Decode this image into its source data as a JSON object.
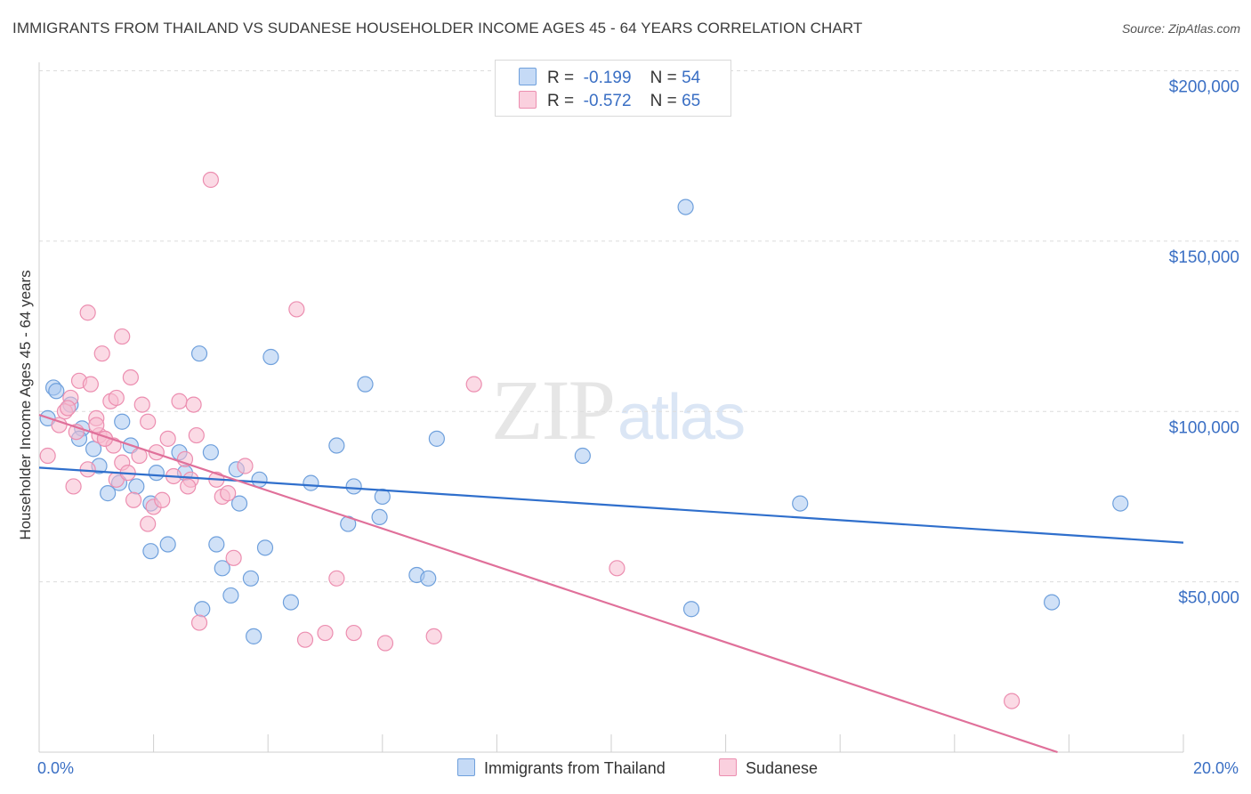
{
  "title": "IMMIGRANTS FROM THAILAND VS SUDANESE HOUSEHOLDER INCOME AGES 45 - 64 YEARS CORRELATION CHART",
  "source": "Source: ZipAtlas.com",
  "watermark": {
    "zip": "ZIP",
    "atlas": "atlas"
  },
  "legend": {
    "thailand": {
      "r_label": "R =",
      "r_value": "-0.199",
      "n_label": "N =",
      "n_value": "54"
    },
    "sudanese": {
      "r_label": "R =",
      "r_value": "-0.572",
      "n_label": "N =",
      "n_value": "65"
    }
  },
  "bottom_legend": {
    "thailand": "Immigrants from Thailand",
    "sudanese": "Sudanese"
  },
  "colors": {
    "thailand_fill": "#a9c8f0",
    "thailand_stroke": "#6fa0dc",
    "thailand_line": "#2f6fcc",
    "sudanese_fill": "#f7bcd0",
    "sudanese_stroke": "#ec8eb0",
    "sudanese_line": "#e0709a",
    "axis_text": "#3a6fc4"
  },
  "chart_data": {
    "type": "scatter",
    "title": "IMMIGRANTS FROM THAILAND VS SUDANESE HOUSEHOLDER INCOME AGES 45 - 64 YEARS CORRELATION CHART",
    "xlabel": "",
    "ylabel": "Householder Income Ages 45 - 64 years",
    "xlim": [
      0,
      20
    ],
    "ylim": [
      0,
      200000
    ],
    "x_tick_labels": [
      "0.0%",
      "20.0%"
    ],
    "y_ticks": [
      50000,
      100000,
      150000,
      200000
    ],
    "y_tick_labels": [
      "$50,000",
      "$100,000",
      "$150,000",
      "$200,000"
    ],
    "series": [
      {
        "name": "Immigrants from Thailand",
        "r": -0.199,
        "n": 54,
        "trend": {
          "x": [
            0,
            20
          ],
          "y": [
            83500,
            61500
          ]
        },
        "points": [
          [
            0.15,
            98000
          ],
          [
            0.25,
            107000
          ],
          [
            0.3,
            106000
          ],
          [
            0.55,
            102000
          ],
          [
            0.75,
            95000
          ],
          [
            0.7,
            92000
          ],
          [
            0.95,
            89000
          ],
          [
            1.05,
            84000
          ],
          [
            1.2,
            76000
          ],
          [
            1.4,
            79000
          ],
          [
            1.45,
            97000
          ],
          [
            1.6,
            90000
          ],
          [
            1.7,
            78000
          ],
          [
            1.95,
            73000
          ],
          [
            2.05,
            82000
          ],
          [
            1.95,
            59000
          ],
          [
            2.25,
            61000
          ],
          [
            2.45,
            88000
          ],
          [
            2.55,
            82000
          ],
          [
            2.8,
            117000
          ],
          [
            2.85,
            42000
          ],
          [
            3.0,
            88000
          ],
          [
            3.1,
            61000
          ],
          [
            3.2,
            54000
          ],
          [
            3.35,
            46000
          ],
          [
            3.45,
            83000
          ],
          [
            3.5,
            73000
          ],
          [
            3.7,
            51000
          ],
          [
            3.75,
            34000
          ],
          [
            3.85,
            80000
          ],
          [
            3.95,
            60000
          ],
          [
            4.05,
            116000
          ],
          [
            4.4,
            44000
          ],
          [
            4.75,
            79000
          ],
          [
            5.2,
            90000
          ],
          [
            5.4,
            67000
          ],
          [
            5.5,
            78000
          ],
          [
            5.7,
            108000
          ],
          [
            5.95,
            69000
          ],
          [
            6.0,
            75000
          ],
          [
            6.6,
            52000
          ],
          [
            6.8,
            51000
          ],
          [
            6.95,
            92000
          ],
          [
            9.5,
            87000
          ],
          [
            11.3,
            160000
          ],
          [
            11.4,
            42000
          ],
          [
            13.3,
            73000
          ],
          [
            17.7,
            44000
          ],
          [
            18.9,
            73000
          ]
        ]
      },
      {
        "name": "Sudanese",
        "r": -0.572,
        "n": 65,
        "trend": {
          "x": [
            0,
            17.8
          ],
          "y": [
            99000,
            0
          ]
        },
        "points": [
          [
            0.15,
            87000
          ],
          [
            0.35,
            96000
          ],
          [
            0.45,
            100000
          ],
          [
            0.55,
            104000
          ],
          [
            0.5,
            101000
          ],
          [
            0.7,
            109000
          ],
          [
            0.65,
            94000
          ],
          [
            0.85,
            83000
          ],
          [
            1.0,
            98000
          ],
          [
            0.9,
            108000
          ],
          [
            0.85,
            129000
          ],
          [
            1.05,
            93000
          ],
          [
            1.15,
            92000
          ],
          [
            1.1,
            117000
          ],
          [
            1.25,
            103000
          ],
          [
            1.35,
            104000
          ],
          [
            1.3,
            90000
          ],
          [
            1.35,
            80000
          ],
          [
            1.45,
            85000
          ],
          [
            1.55,
            82000
          ],
          [
            1.45,
            122000
          ],
          [
            1.6,
            110000
          ],
          [
            1.65,
            74000
          ],
          [
            1.8,
            102000
          ],
          [
            1.9,
            67000
          ],
          [
            1.9,
            97000
          ],
          [
            2.0,
            72000
          ],
          [
            2.05,
            88000
          ],
          [
            2.15,
            74000
          ],
          [
            2.25,
            92000
          ],
          [
            2.35,
            81000
          ],
          [
            2.45,
            103000
          ],
          [
            2.55,
            86000
          ],
          [
            2.65,
            80000
          ],
          [
            2.7,
            102000
          ],
          [
            2.8,
            38000
          ],
          [
            2.75,
            93000
          ],
          [
            3.0,
            168000
          ],
          [
            3.1,
            80000
          ],
          [
            3.2,
            75000
          ],
          [
            3.3,
            76000
          ],
          [
            3.4,
            57000
          ],
          [
            3.6,
            84000
          ],
          [
            4.5,
            130000
          ],
          [
            4.65,
            33000
          ],
          [
            5.0,
            35000
          ],
          [
            5.2,
            51000
          ],
          [
            5.5,
            35000
          ],
          [
            6.05,
            32000
          ],
          [
            6.9,
            34000
          ],
          [
            7.6,
            108000
          ],
          [
            10.1,
            54000
          ],
          [
            17.0,
            15000
          ],
          [
            0.6,
            78000
          ],
          [
            1.15,
            92000
          ],
          [
            1.0,
            96000
          ],
          [
            1.75,
            87000
          ],
          [
            2.6,
            78000
          ]
        ]
      }
    ]
  }
}
